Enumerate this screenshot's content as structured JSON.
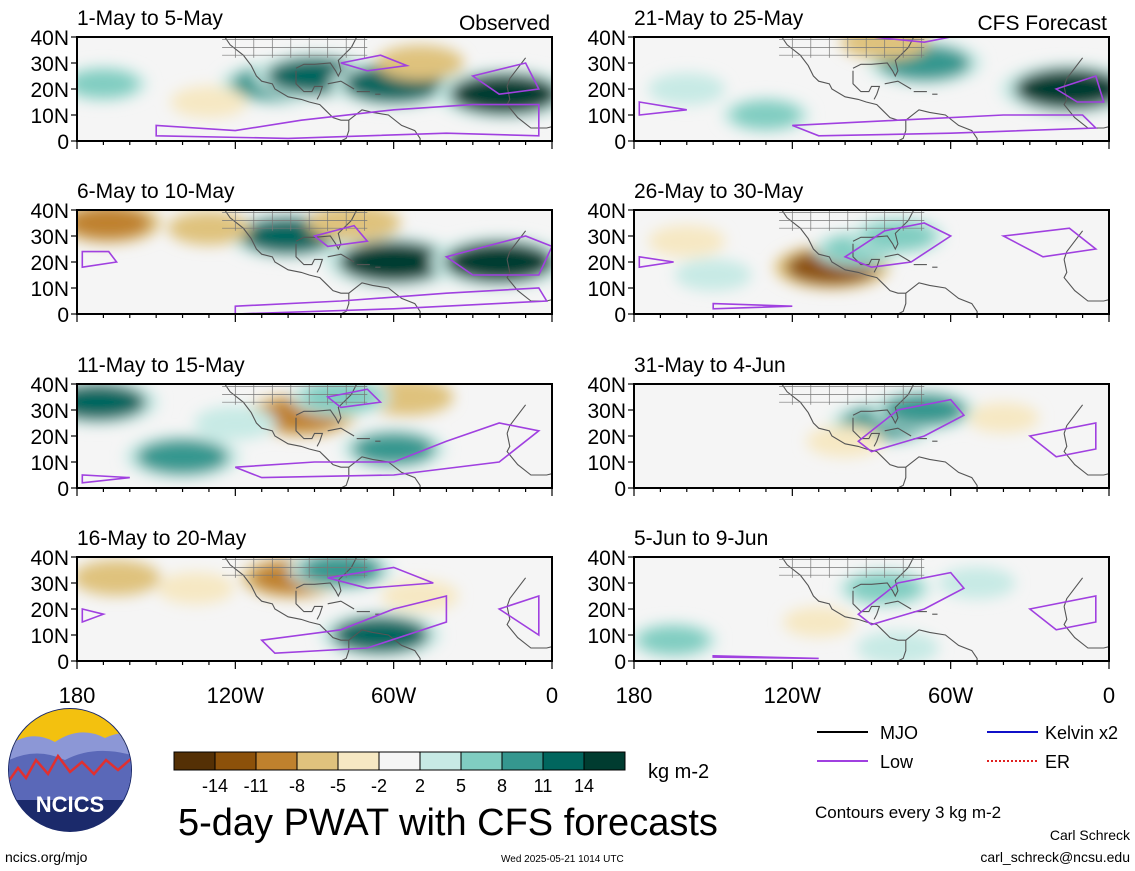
{
  "panel_titles_left": [
    "1-May to 5-May",
    "6-May to 10-May",
    "11-May to 15-May",
    "16-May to 20-May"
  ],
  "panel_titles_right": [
    "21-May to 25-May",
    "26-May to 30-May",
    "31-May to 4-Jun",
    "5-Jun to 9-Jun"
  ],
  "tag_observed": "Observed",
  "tag_forecast": "CFS Forecast",
  "title": "5-day PWAT with CFS forecasts",
  "colorbar": {
    "unit_label": "kg m-2",
    "tick_labels": [
      "-14",
      "-11",
      "-8",
      "-5",
      "-2",
      "2",
      "5",
      "8",
      "11",
      "14"
    ],
    "colors": [
      "#543005",
      "#8c510a",
      "#bf812d",
      "#dfc27d",
      "#f6e8c3",
      "#f5f5f5",
      "#c7eae5",
      "#80cdc1",
      "#35978f",
      "#01665e",
      "#003c30"
    ]
  },
  "legend": {
    "items": [
      {
        "label": "MJO",
        "color": "#000000",
        "style": "solid"
      },
      {
        "label": "Kelvin x2",
        "color": "#1010c8",
        "style": "solid"
      },
      {
        "label": "Low",
        "color": "#a040e0",
        "style": "solid"
      },
      {
        "label": "ER",
        "color": "#e02020",
        "style": "dotted"
      }
    ],
    "note": "Contours every 3 kg m-2"
  },
  "footer": {
    "left": "ncics.org/mjo",
    "center": "Wed 2025-05-21 1014 UTC",
    "author": "Carl Schreck",
    "email": "carl_schreck@ncsu.edu"
  },
  "logo_text": "NCICS",
  "chart_data": {
    "type": "heatmap",
    "variable": "5-day PWAT with CFS forecasts",
    "units": "kg m-2",
    "x_ticks": [
      "180",
      "120W",
      "60W",
      "0"
    ],
    "y_ticks": [
      "40N",
      "30N",
      "20N",
      "10N",
      "0"
    ],
    "xlim": [
      -180,
      0
    ],
    "ylim": [
      0,
      40
    ],
    "levels": [
      -14,
      -11,
      -8,
      -5,
      -2,
      2,
      5,
      8,
      11,
      14
    ],
    "panels": [
      {
        "title": "1-May to 5-May",
        "tag": "Observed",
        "anomalies": [
          {
            "lon": -105,
            "lat": 22,
            "v": 10
          },
          {
            "lon": -90,
            "lat": 25,
            "v": 12
          },
          {
            "lon": -60,
            "lat": 22,
            "v": 13
          },
          {
            "lon": -50,
            "lat": 30,
            "v": -6
          },
          {
            "lon": -18,
            "lat": 18,
            "v": 15
          },
          {
            "lon": -170,
            "lat": 22,
            "v": 6
          },
          {
            "lon": -130,
            "lat": 15,
            "v": -4
          }
        ]
      },
      {
        "title": "6-May to 10-May",
        "tag": "Observed",
        "anomalies": [
          {
            "lon": -168,
            "lat": 35,
            "v": -9
          },
          {
            "lon": -100,
            "lat": 30,
            "v": 12
          },
          {
            "lon": -60,
            "lat": 20,
            "v": 15
          },
          {
            "lon": -20,
            "lat": 20,
            "v": 15
          },
          {
            "lon": -75,
            "lat": 35,
            "v": -7
          },
          {
            "lon": -130,
            "lat": 33,
            "v": -5
          }
        ]
      },
      {
        "title": "11-May to 15-May",
        "tag": "Observed",
        "anomalies": [
          {
            "lon": -172,
            "lat": 33,
            "v": 12
          },
          {
            "lon": -95,
            "lat": 28,
            "v": -10
          },
          {
            "lon": -120,
            "lat": 25,
            "v": 5
          },
          {
            "lon": -140,
            "lat": 12,
            "v": 11
          },
          {
            "lon": -60,
            "lat": 15,
            "v": 9
          },
          {
            "lon": -55,
            "lat": 35,
            "v": -7
          },
          {
            "lon": -80,
            "lat": 35,
            "v": 8
          }
        ]
      },
      {
        "title": "16-May to 20-May",
        "tag": "Observed",
        "anomalies": [
          {
            "lon": -98,
            "lat": 32,
            "v": -9
          },
          {
            "lon": -80,
            "lat": 35,
            "v": 9
          },
          {
            "lon": -65,
            "lat": 10,
            "v": 12
          },
          {
            "lon": -50,
            "lat": 25,
            "v": -4
          },
          {
            "lon": -165,
            "lat": 32,
            "v": -6
          },
          {
            "lon": -135,
            "lat": 28,
            "v": -4
          }
        ]
      },
      {
        "title": "21-May to 25-May",
        "tag": "CFS Forecast",
        "anomalies": [
          {
            "lon": -70,
            "lat": 30,
            "v": 11
          },
          {
            "lon": -15,
            "lat": 20,
            "v": 15
          },
          {
            "lon": -85,
            "lat": 38,
            "v": -6
          },
          {
            "lon": -160,
            "lat": 20,
            "v": 4
          },
          {
            "lon": -130,
            "lat": 10,
            "v": 6
          }
        ]
      },
      {
        "title": "26-May to 30-May",
        "tag": "CFS Forecast",
        "anomalies": [
          {
            "lon": -105,
            "lat": 18,
            "v": -11
          },
          {
            "lon": -95,
            "lat": 25,
            "v": 6
          },
          {
            "lon": -80,
            "lat": 30,
            "v": 7
          },
          {
            "lon": -160,
            "lat": 28,
            "v": -4
          },
          {
            "lon": -150,
            "lat": 15,
            "v": 4
          }
        ]
      },
      {
        "title": "31-May to 4-Jun",
        "tag": "CFS Forecast",
        "anomalies": [
          {
            "lon": -85,
            "lat": 25,
            "v": 10
          },
          {
            "lon": -70,
            "lat": 30,
            "v": 9
          },
          {
            "lon": -100,
            "lat": 18,
            "v": -4
          },
          {
            "lon": -40,
            "lat": 27,
            "v": -3
          }
        ]
      },
      {
        "title": "5-Jun to 9-Jun",
        "tag": "CFS Forecast",
        "anomalies": [
          {
            "lon": -85,
            "lat": 28,
            "v": 7
          },
          {
            "lon": -80,
            "lat": 5,
            "v": 5
          },
          {
            "lon": -110,
            "lat": 15,
            "v": -3
          },
          {
            "lon": -50,
            "lat": 30,
            "v": 4
          },
          {
            "lon": -165,
            "lat": 8,
            "v": 6
          }
        ]
      }
    ]
  }
}
